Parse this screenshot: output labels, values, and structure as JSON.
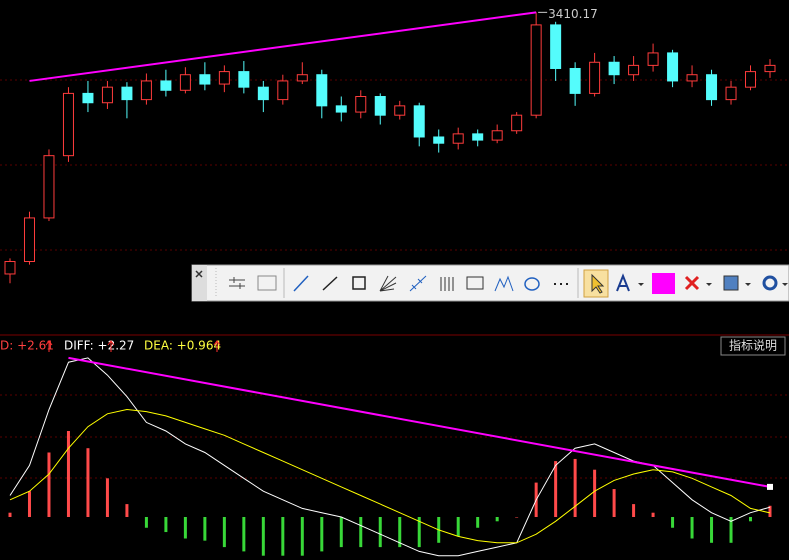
{
  "chart_data": {
    "type": "candlestick",
    "candles": [
      {
        "open": 2990,
        "close": 3010,
        "high": 3015,
        "low": 2975
      },
      {
        "open": 3010,
        "close": 3080,
        "high": 3090,
        "low": 3005
      },
      {
        "open": 3080,
        "close": 3180,
        "high": 3190,
        "low": 3075
      },
      {
        "open": 3180,
        "close": 3280,
        "high": 3290,
        "low": 3170
      },
      {
        "open": 3280,
        "close": 3265,
        "high": 3300,
        "low": 3250
      },
      {
        "open": 3265,
        "close": 3290,
        "high": 3300,
        "low": 3255
      },
      {
        "open": 3290,
        "close": 3270,
        "high": 3298,
        "low": 3240
      },
      {
        "open": 3270,
        "close": 3300,
        "high": 3312,
        "low": 3262
      },
      {
        "open": 3300,
        "close": 3285,
        "high": 3318,
        "low": 3275
      },
      {
        "open": 3285,
        "close": 3310,
        "high": 3322,
        "low": 3280
      },
      {
        "open": 3310,
        "close": 3295,
        "high": 3330,
        "low": 3285
      },
      {
        "open": 3295,
        "close": 3315,
        "high": 3325,
        "low": 3282
      },
      {
        "open": 3315,
        "close": 3290,
        "high": 3332,
        "low": 3280
      },
      {
        "open": 3290,
        "close": 3270,
        "high": 3300,
        "low": 3250
      },
      {
        "open": 3270,
        "close": 3300,
        "high": 3310,
        "low": 3262
      },
      {
        "open": 3300,
        "close": 3310,
        "high": 3330,
        "low": 3295
      },
      {
        "open": 3310,
        "close": 3260,
        "high": 3318,
        "low": 3240
      },
      {
        "open": 3260,
        "close": 3250,
        "high": 3275,
        "low": 3235
      },
      {
        "open": 3250,
        "close": 3275,
        "high": 3285,
        "low": 3240
      },
      {
        "open": 3275,
        "close": 3245,
        "high": 3280,
        "low": 3230
      },
      {
        "open": 3245,
        "close": 3260,
        "high": 3268,
        "low": 3238
      },
      {
        "open": 3260,
        "close": 3210,
        "high": 3265,
        "low": 3195
      },
      {
        "open": 3210,
        "close": 3200,
        "high": 3222,
        "low": 3185
      },
      {
        "open": 3200,
        "close": 3215,
        "high": 3225,
        "low": 3190
      },
      {
        "open": 3215,
        "close": 3205,
        "high": 3222,
        "low": 3195
      },
      {
        "open": 3205,
        "close": 3220,
        "high": 3230,
        "low": 3200
      },
      {
        "open": 3220,
        "close": 3245,
        "high": 3250,
        "low": 3215
      },
      {
        "open": 3245,
        "close": 3390,
        "high": 3410.17,
        "low": 3240
      },
      {
        "open": 3390,
        "close": 3320,
        "high": 3395,
        "low": 3300
      },
      {
        "open": 3320,
        "close": 3280,
        "high": 3330,
        "low": 3260
      },
      {
        "open": 3280,
        "close": 3330,
        "high": 3345,
        "low": 3275
      },
      {
        "open": 3330,
        "close": 3310,
        "high": 3340,
        "low": 3295
      },
      {
        "open": 3310,
        "close": 3325,
        "high": 3340,
        "low": 3300
      },
      {
        "open": 3325,
        "close": 3345,
        "high": 3360,
        "low": 3315
      },
      {
        "open": 3345,
        "close": 3300,
        "high": 3350,
        "low": 3290
      },
      {
        "open": 3300,
        "close": 3310,
        "high": 3325,
        "low": 3290
      },
      {
        "open": 3310,
        "close": 3270,
        "high": 3318,
        "low": 3260
      },
      {
        "open": 3270,
        "close": 3290,
        "high": 3300,
        "low": 3262
      },
      {
        "open": 3290,
        "close": 3315,
        "high": 3325,
        "low": 3285
      },
      {
        "open": 3315,
        "close": 3325,
        "high": 3335,
        "low": 3305
      }
    ],
    "ylim": [
      2900,
      3430
    ],
    "up_color": "#ff3c3c",
    "down_color": "#54fcfc",
    "trendline": {
      "color": "#ff00ff",
      "points": [
        {
          "index": 1,
          "value": 3300
        },
        {
          "index": 27,
          "value": 3410.17
        }
      ]
    },
    "macd": {
      "ylim": [
        -10,
        40
      ],
      "legend": [
        "D: +2.61",
        "DIFF: +2.27",
        "DEA: +0.964"
      ],
      "hist": [
        1,
        6,
        15,
        20,
        16,
        9,
        3,
        -2.5,
        -3.5,
        -5,
        -5.5,
        -7,
        -8,
        -9,
        -9,
        -9,
        -8,
        -7,
        -7,
        -7,
        -7,
        -7,
        -6,
        -4.5,
        -2.5,
        -1,
        0,
        8,
        13,
        13.5,
        11,
        6.5,
        3,
        1,
        -2.5,
        -5,
        -6,
        -6,
        -1,
        2.61
      ],
      "series": [
        {
          "name": "DIFF",
          "color": "#ffffff",
          "values": [
            5,
            12,
            25,
            36,
            37,
            33,
            28,
            22,
            20,
            17,
            15,
            12,
            9,
            6,
            4,
            2,
            1,
            0,
            -2,
            -4,
            -6,
            -8,
            -9,
            -9,
            -8,
            -7,
            -6,
            4,
            12,
            16,
            17,
            15,
            13,
            12,
            8,
            4,
            1,
            -1,
            1,
            2.27
          ]
        },
        {
          "name": "DEA",
          "color": "#ffff00",
          "values": [
            4,
            6,
            10,
            16,
            21,
            24,
            25,
            24.5,
            23.5,
            22,
            20.5,
            19,
            17,
            15,
            13,
            11,
            9,
            7,
            5,
            3,
            1,
            -1,
            -3,
            -4.5,
            -5.5,
            -6,
            -6,
            -4,
            -1,
            2.5,
            6,
            8.5,
            10,
            11,
            10.5,
            9,
            7,
            5,
            2,
            0.964
          ]
        }
      ],
      "trendline": {
        "color": "#ff00ff",
        "points": [
          {
            "index": 3,
            "value": 37
          },
          {
            "index": 39,
            "value": 7
          }
        ]
      }
    },
    "button": "指标说明"
  }
}
